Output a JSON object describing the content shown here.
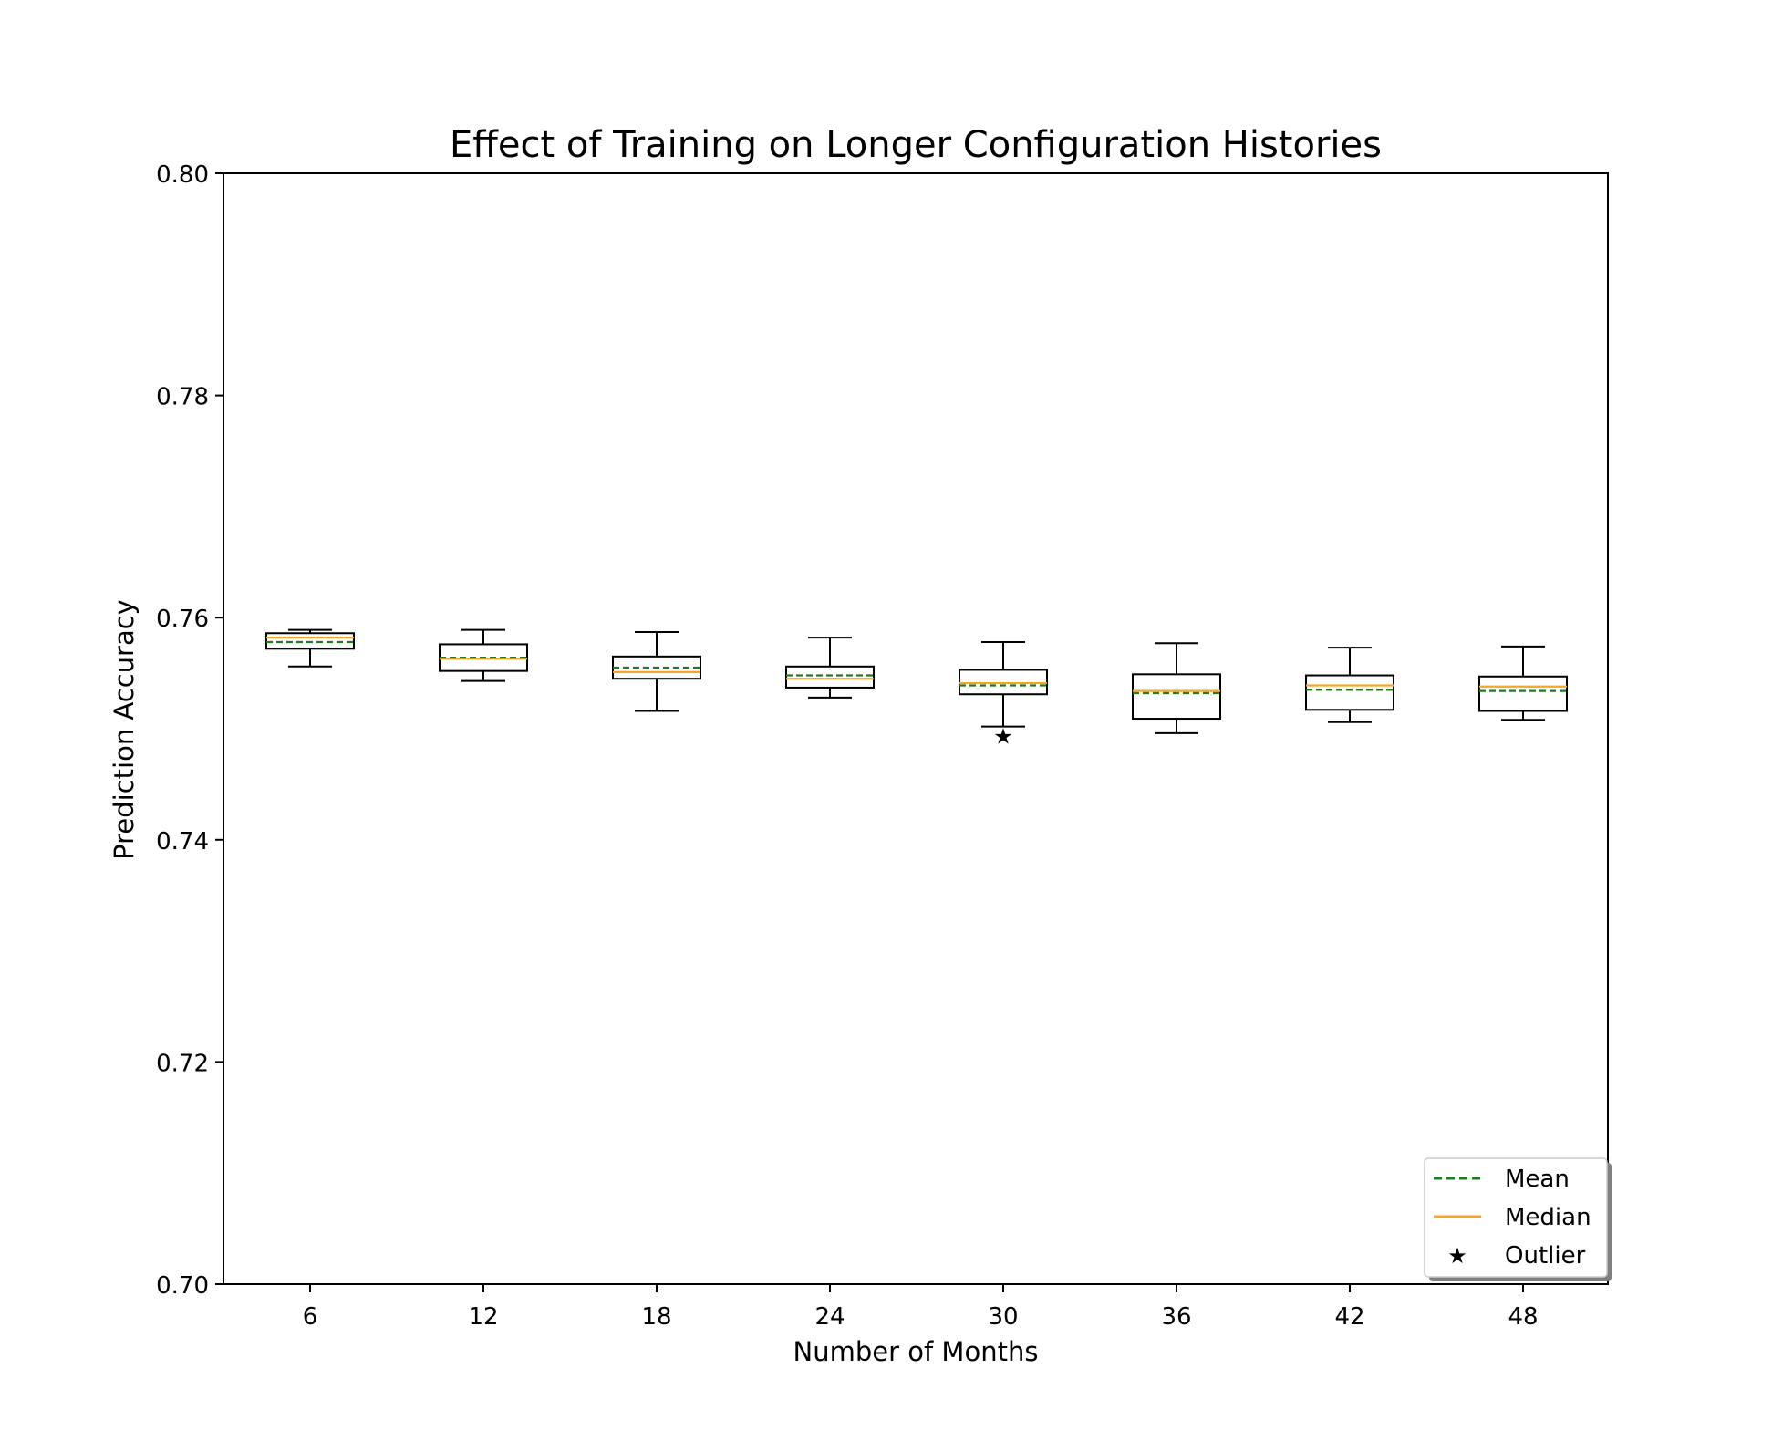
{
  "chart_data": {
    "type": "box",
    "title": "Effect of Training on Longer Configuration Histories",
    "xlabel": "Number of Months",
    "ylabel": "Prediction Accuracy",
    "ylim": [
      0.7,
      0.8
    ],
    "yticks": [
      "0.70",
      "0.72",
      "0.74",
      "0.76",
      "0.78",
      "0.80"
    ],
    "categories": [
      "6",
      "12",
      "18",
      "24",
      "30",
      "36",
      "42",
      "48"
    ],
    "boxes": [
      {
        "category": "6",
        "whislo": 0.7556,
        "q1": 0.7572,
        "median": 0.7582,
        "mean": 0.7578,
        "q3": 0.7586,
        "whishi": 0.7589,
        "outliers": []
      },
      {
        "category": "12",
        "whislo": 0.7543,
        "q1": 0.7552,
        "median": 0.7563,
        "mean": 0.7564,
        "q3": 0.7576,
        "whishi": 0.7589,
        "outliers": []
      },
      {
        "category": "18",
        "whislo": 0.7516,
        "q1": 0.7545,
        "median": 0.7551,
        "mean": 0.7555,
        "q3": 0.7565,
        "whishi": 0.7587,
        "outliers": []
      },
      {
        "category": "24",
        "whislo": 0.7528,
        "q1": 0.7537,
        "median": 0.7545,
        "mean": 0.7548,
        "q3": 0.7556,
        "whishi": 0.7582,
        "outliers": []
      },
      {
        "category": "30",
        "whislo": 0.7502,
        "q1": 0.7531,
        "median": 0.7541,
        "mean": 0.7539,
        "q3": 0.7553,
        "whishi": 0.7578,
        "outliers": [
          0.7494
        ]
      },
      {
        "category": "36",
        "whislo": 0.7496,
        "q1": 0.7509,
        "median": 0.7534,
        "mean": 0.7532,
        "q3": 0.7549,
        "whishi": 0.7577,
        "outliers": []
      },
      {
        "category": "42",
        "whislo": 0.7506,
        "q1": 0.7517,
        "median": 0.7539,
        "mean": 0.7535,
        "q3": 0.7548,
        "whishi": 0.7573,
        "outliers": []
      },
      {
        "category": "48",
        "whislo": 0.7508,
        "q1": 0.7516,
        "median": 0.7538,
        "mean": 0.7534,
        "q3": 0.7547,
        "whishi": 0.7574,
        "outliers": []
      }
    ],
    "legend": {
      "placement": "lower-right",
      "entries": [
        {
          "label": "Mean",
          "style": "dashed-line",
          "color": "#1e7d1e"
        },
        {
          "label": "Median",
          "style": "solid-line",
          "color": "#f5a623"
        },
        {
          "label": "Outlier",
          "style": "star-marker",
          "color": "#1e7d1e"
        }
      ]
    },
    "colors": {
      "box": "#000000",
      "mean": "#1e7d1e",
      "median": "#f5a623",
      "outlier": "#1e7d1e"
    },
    "grid": false
  }
}
